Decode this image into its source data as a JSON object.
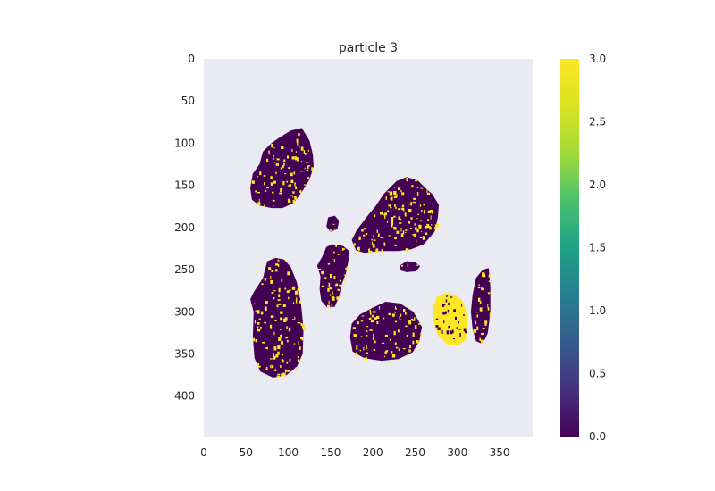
{
  "chart_data": {
    "type": "heatmap",
    "title": "particle 3",
    "xlabel": "",
    "ylabel": "",
    "xlim": [
      0,
      389
    ],
    "ylim": [
      449,
      0
    ],
    "x_ticks": [
      "0",
      "50",
      "100",
      "150",
      "200",
      "250",
      "300",
      "350"
    ],
    "y_ticks": [
      "0",
      "50",
      "100",
      "150",
      "200",
      "250",
      "300",
      "350",
      "400"
    ],
    "colorbar": {
      "colormap": "viridis",
      "range": [
        0.0,
        3.0
      ],
      "ticks": [
        "0.0",
        "0.5",
        "1.0",
        "1.5",
        "2.0",
        "2.5",
        "3.0"
      ]
    },
    "background_color": "#eaeaf2",
    "grid": false,
    "value_colors": {
      "0": "#440154",
      "3": "#fde725"
    },
    "regions": [
      {
        "name": "region-a",
        "value": 0,
        "polygon": [
          [
            90,
            93
          ],
          [
            103,
            85
          ],
          [
            116,
            82
          ],
          [
            125,
            97
          ],
          [
            129,
            113
          ],
          [
            130,
            128
          ],
          [
            125,
            143
          ],
          [
            116,
            158
          ],
          [
            106,
            171
          ],
          [
            93,
            177
          ],
          [
            80,
            177
          ],
          [
            66,
            174
          ],
          [
            57,
            167
          ],
          [
            55,
            153
          ],
          [
            58,
            136
          ],
          [
            66,
            125
          ],
          [
            70,
            110
          ],
          [
            80,
            100
          ]
        ]
      },
      {
        "name": "region-b",
        "value": 0,
        "polygon": [
          [
            213,
            160
          ],
          [
            228,
            145
          ],
          [
            240,
            140
          ],
          [
            253,
            144
          ],
          [
            262,
            153
          ],
          [
            270,
            160
          ],
          [
            278,
            173
          ],
          [
            277,
            188
          ],
          [
            273,
            205
          ],
          [
            260,
            220
          ],
          [
            245,
            226
          ],
          [
            230,
            228
          ],
          [
            208,
            228
          ],
          [
            190,
            230
          ],
          [
            180,
            227
          ],
          [
            175,
            215
          ],
          [
            181,
            203
          ],
          [
            193,
            187
          ],
          [
            203,
            175
          ]
        ]
      },
      {
        "name": "region-c",
        "value": 0,
        "polygon": [
          [
            145,
            223
          ],
          [
            152,
            220
          ],
          [
            165,
            222
          ],
          [
            172,
            228
          ],
          [
            171,
            240
          ],
          [
            168,
            255
          ],
          [
            163,
            268
          ],
          [
            160,
            282
          ],
          [
            155,
            294
          ],
          [
            146,
            295
          ],
          [
            139,
            287
          ],
          [
            137,
            273
          ],
          [
            138,
            258
          ],
          [
            134,
            245
          ],
          [
            140,
            235
          ]
        ]
      },
      {
        "name": "region-d",
        "value": 0,
        "polygon": [
          [
            75,
            240
          ],
          [
            85,
            236
          ],
          [
            95,
            238
          ],
          [
            103,
            247
          ],
          [
            110,
            265
          ],
          [
            115,
            290
          ],
          [
            118,
            320
          ],
          [
            117,
            350
          ],
          [
            110,
            365
          ],
          [
            98,
            375
          ],
          [
            82,
            378
          ],
          [
            67,
            371
          ],
          [
            60,
            355
          ],
          [
            58,
            330
          ],
          [
            59,
            300
          ],
          [
            55,
            285
          ],
          [
            60,
            275
          ],
          [
            70,
            260
          ]
        ]
      },
      {
        "name": "region-e",
        "value": 0,
        "polygon": [
          [
            200,
            295
          ],
          [
            215,
            288
          ],
          [
            232,
            290
          ],
          [
            248,
            300
          ],
          [
            258,
            318
          ],
          [
            255,
            335
          ],
          [
            247,
            348
          ],
          [
            230,
            356
          ],
          [
            210,
            358
          ],
          [
            190,
            355
          ],
          [
            176,
            347
          ],
          [
            173,
            330
          ],
          [
            175,
            314
          ],
          [
            185,
            303
          ]
        ]
      },
      {
        "name": "region-f",
        "value": 3,
        "polygon": [
          [
            275,
            283
          ],
          [
            285,
            278
          ],
          [
            298,
            280
          ],
          [
            306,
            287
          ],
          [
            310,
            298
          ],
          [
            312,
            315
          ],
          [
            310,
            333
          ],
          [
            300,
            340
          ],
          [
            287,
            338
          ],
          [
            277,
            328
          ],
          [
            272,
            312
          ],
          [
            271,
            296
          ]
        ]
      },
      {
        "name": "region-g",
        "value": 0,
        "polygon": [
          [
            322,
            260
          ],
          [
            330,
            250
          ],
          [
            337,
            248
          ],
          [
            339,
            270
          ],
          [
            339,
            300
          ],
          [
            336,
            325
          ],
          [
            330,
            338
          ],
          [
            322,
            335
          ],
          [
            318,
            320
          ],
          [
            316,
            300
          ],
          [
            318,
            280
          ]
        ]
      },
      {
        "name": "region-h",
        "value": 0,
        "polygon": [
          [
            232,
            245
          ],
          [
            240,
            240
          ],
          [
            250,
            241
          ],
          [
            256,
            246
          ],
          [
            251,
            252
          ],
          [
            240,
            253
          ],
          [
            233,
            251
          ]
        ]
      },
      {
        "name": "region-i",
        "value": 0,
        "polygon": [
          [
            147,
            188
          ],
          [
            155,
            186
          ],
          [
            160,
            192
          ],
          [
            158,
            202
          ],
          [
            150,
            205
          ],
          [
            145,
            199
          ]
        ]
      }
    ]
  }
}
